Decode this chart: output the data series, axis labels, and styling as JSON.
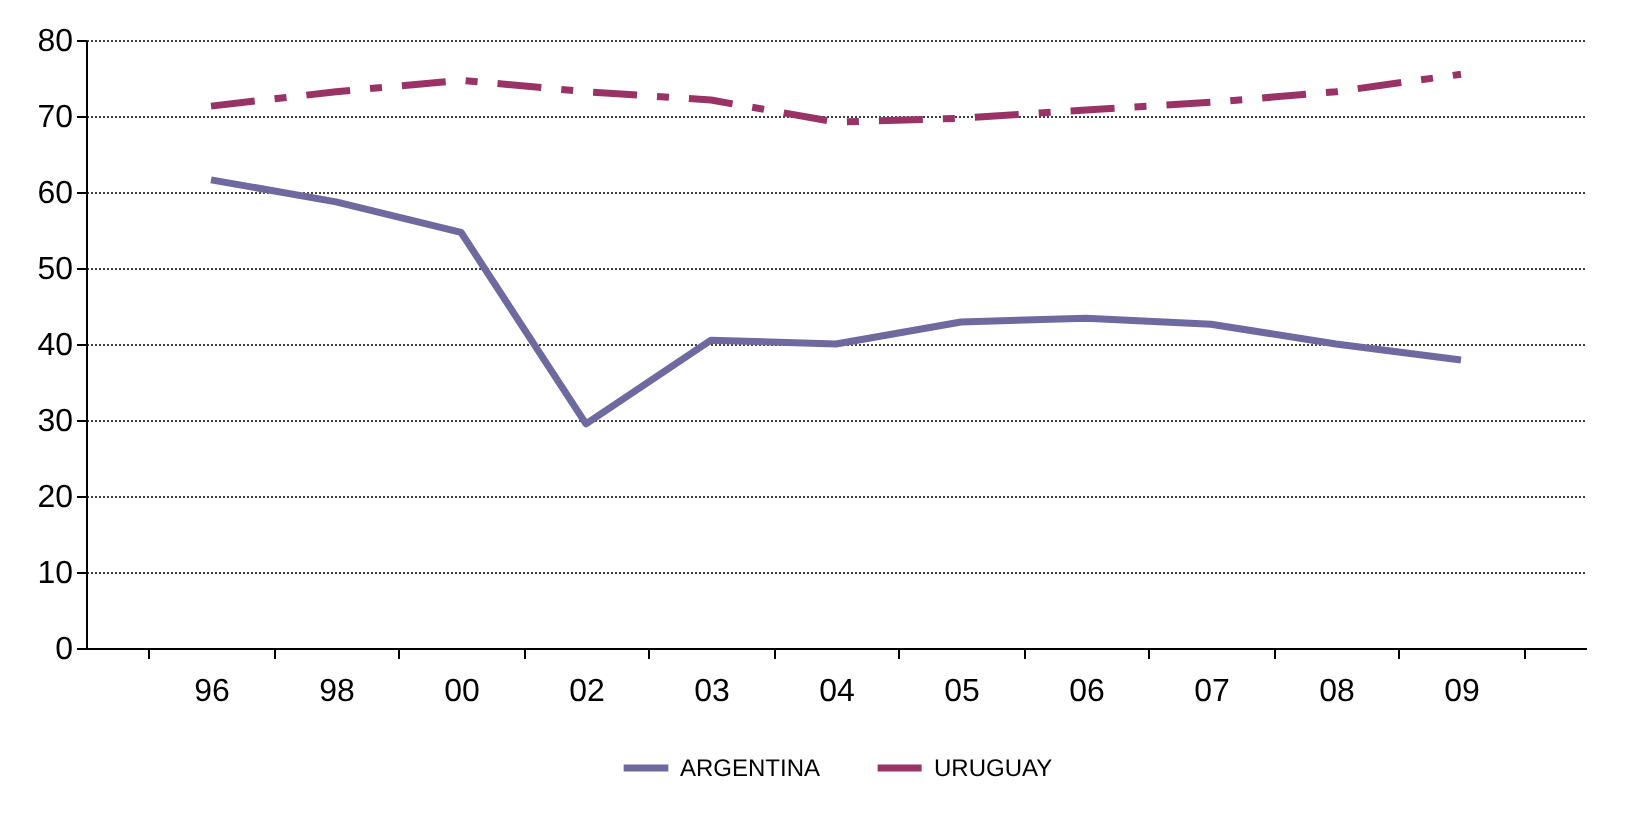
{
  "chart_data": {
    "type": "line",
    "categories": [
      "96",
      "98",
      "00",
      "02",
      "03",
      "04",
      "05",
      "06",
      "07",
      "08",
      "09"
    ],
    "series": [
      {
        "name": "ARGENTINA",
        "color": "#6e6aa0",
        "line_style": "solid",
        "values": [
          61.6,
          58.7,
          54.7,
          29.5,
          40.5,
          40,
          42.9,
          43.4,
          42.6,
          40,
          37.9
        ]
      },
      {
        "name": "URUGUAY",
        "color": "#993366",
        "line_style": "dashed",
        "values": [
          71.3,
          73.2,
          74.7,
          73.2,
          72.1,
          69.2,
          69.7,
          70.8,
          71.8,
          73.2,
          75.5
        ]
      }
    ],
    "ylim": [
      0,
      80
    ],
    "yticks": [
      0,
      10,
      20,
      30,
      40,
      50,
      60,
      70,
      80
    ],
    "grid": "y",
    "legend": "bottom",
    "marker": "none"
  }
}
